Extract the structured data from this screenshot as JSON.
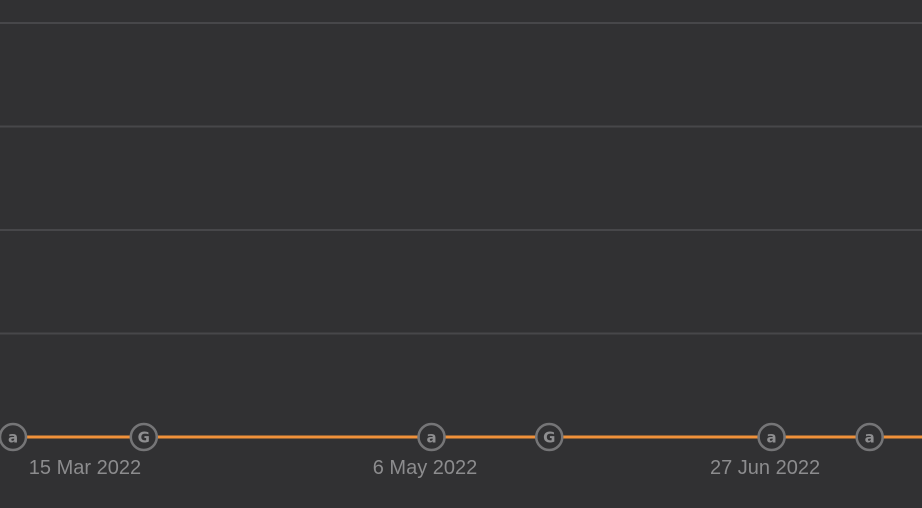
{
  "chart_data": {
    "type": "line",
    "colors": {
      "background": "#313133",
      "grid": "#47474a",
      "line": "#f0913a",
      "marker_border": "#757577",
      "marker_fill": "#313133",
      "marker_text": "#8e8e90",
      "tick_label": "#8c8c8e"
    },
    "grid": true,
    "x_axis": {
      "type": "date",
      "range": [
        "2022-03-04",
        "2022-07-21"
      ],
      "ticks": [
        {
          "date": "2022-03-15",
          "label": "15 Mar 2022"
        },
        {
          "date": "2022-05-06",
          "label": "6 May 2022"
        },
        {
          "date": "2022-06-27",
          "label": "27 Jun 2022"
        }
      ]
    },
    "y_axis": {
      "ylim": [
        0,
        4
      ],
      "gridlines": [
        1,
        2,
        3,
        4
      ],
      "tick_labels_visible": false
    },
    "series": [
      {
        "points": [
          {
            "x": "2022-03-04",
            "y": 0
          },
          {
            "x": "2022-07-21",
            "y": 0
          }
        ]
      }
    ],
    "markers": [
      {
        "x": "2022-03-04",
        "glyph": "a"
      },
      {
        "x": "2022-03-24",
        "glyph": "G"
      },
      {
        "x": "2022-05-07",
        "glyph": "a"
      },
      {
        "x": "2022-05-25",
        "glyph": "G"
      },
      {
        "x": "2022-06-28",
        "glyph": "a"
      },
      {
        "x": "2022-07-13",
        "glyph": "a"
      }
    ]
  }
}
